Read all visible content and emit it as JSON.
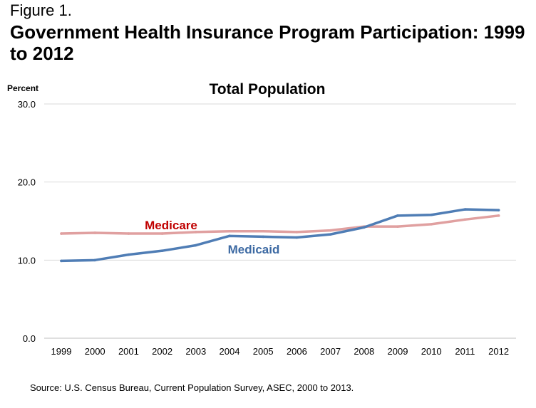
{
  "figure_label": "Figure 1.",
  "title": "Government Health Insurance Program Participation: 1999 to 2012",
  "source": "Source:  U.S. Census Bureau, Current Population Survey, ASEC, 2000 to 2013.",
  "chart_data": {
    "type": "line",
    "title": "Total Population",
    "ylabel": "Percent",
    "xlabel": "",
    "ylim": [
      0,
      30
    ],
    "yticks": [
      "0.0",
      "10.0",
      "20.0",
      "30.0"
    ],
    "grid": true,
    "categories": [
      "1999",
      "2000",
      "2001",
      "2002",
      "2003",
      "2004",
      "2005",
      "2006",
      "2007",
      "2008",
      "2009",
      "2010",
      "2011",
      "2012"
    ],
    "series": [
      {
        "name": "Medicare",
        "color": "#e0a0a0",
        "label_color": "#c00000",
        "values": [
          13.4,
          13.5,
          13.4,
          13.4,
          13.6,
          13.7,
          13.7,
          13.6,
          13.8,
          14.3,
          14.3,
          14.6,
          15.2,
          15.7
        ]
      },
      {
        "name": "Medicaid",
        "color": "#4f7db5",
        "label_color": "#3d6aa3",
        "values": [
          9.9,
          10.0,
          10.7,
          11.2,
          11.9,
          13.1,
          13.0,
          12.9,
          13.3,
          14.2,
          15.7,
          15.8,
          16.5,
          16.4
        ]
      }
    ]
  }
}
